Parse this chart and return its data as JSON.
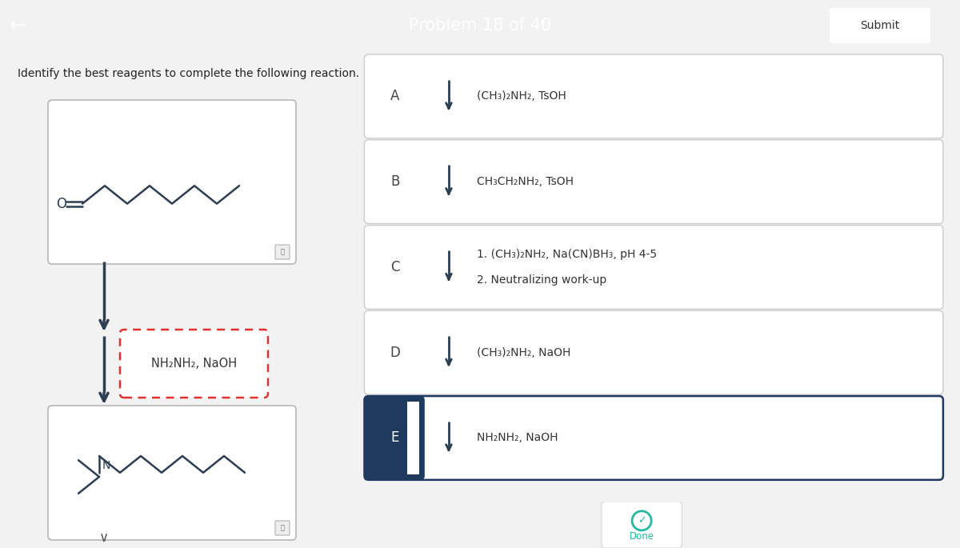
{
  "title": "Problem 18 of 40",
  "title_bg": "#d9342b",
  "title_color": "#ffffff",
  "submit_label": "Submit",
  "instruction": "Identify the best reagents to complete the following reaction.",
  "page_bg": "#f2f2f2",
  "reagent_label": "NH₂NH₂, NaOH",
  "options": [
    {
      "label": "A",
      "text": "(CH₃)₂NH₂, TsOH",
      "selected": false
    },
    {
      "label": "B",
      "text": "CH₃CH₂NH₂, TsOH",
      "selected": false
    },
    {
      "label": "C",
      "text": "1. (CH₃)₂NH₂, Na(CN)BH₃, pH 4-5\n2. Neutralizing work-up",
      "selected": false
    },
    {
      "label": "D",
      "text": "(CH₃)₂NH₂, NaOH",
      "selected": false
    },
    {
      "label": "E",
      "text": "NH₂NH₂, NaOH",
      "selected": true
    }
  ],
  "option_bg_selected": "#1e3a5f",
  "option_bg_default": "#ffffff",
  "option_border_default": "#cccccc",
  "option_border_selected": "#1e3a5f",
  "option_label_color_selected": "#ffffff",
  "option_label_color_default": "#444444",
  "arrow_color": "#2c3e50",
  "done_color": "#26b8a0",
  "mol_line_color": "#2c3e50",
  "dashed_box_color": "#e03030",
  "zoom_icon_bg": "#eeeeee",
  "zoom_icon_border": "#aaaaaa",
  "divider_color": "#cccccc"
}
